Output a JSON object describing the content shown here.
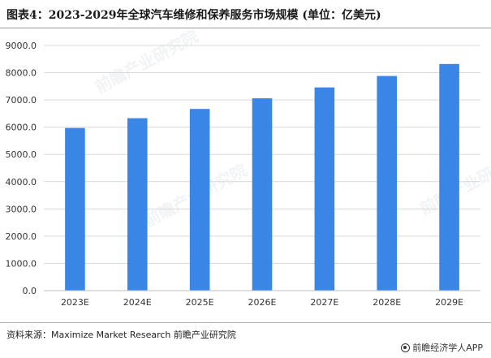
{
  "header": {
    "title": "图表4：2023-2029年全球汽车维修和保养服务市场规模 (单位：亿美元)"
  },
  "footer": {
    "source": "资料来源：Maximize Market Research 前瞻产业研究院",
    "brand": "前瞻经济学人APP"
  },
  "watermark": {
    "text": "前瞻产业研究院"
  },
  "colors": {
    "bar": "#3a86e6",
    "grid": "#d9d9d9",
    "axis": "#bfbfbf"
  },
  "chart_data": {
    "type": "bar",
    "title": "图表4：2023-2029年全球汽车维修和保养服务市场规模 (单位：亿美元)",
    "xlabel": "",
    "ylabel": "",
    "categories": [
      "2023E",
      "2024E",
      "2025E",
      "2026E",
      "2027E",
      "2028E",
      "2029E"
    ],
    "values": [
      5970,
      6330,
      6670,
      7060,
      7460,
      7880,
      8320
    ],
    "ylim": [
      0,
      9000
    ],
    "yticks": [
      "0.0",
      "1000.0",
      "2000.0",
      "3000.0",
      "4000.0",
      "5000.0",
      "6000.0",
      "7000.0",
      "8000.0",
      "9000.0"
    ],
    "grid": true,
    "legend": "none"
  }
}
